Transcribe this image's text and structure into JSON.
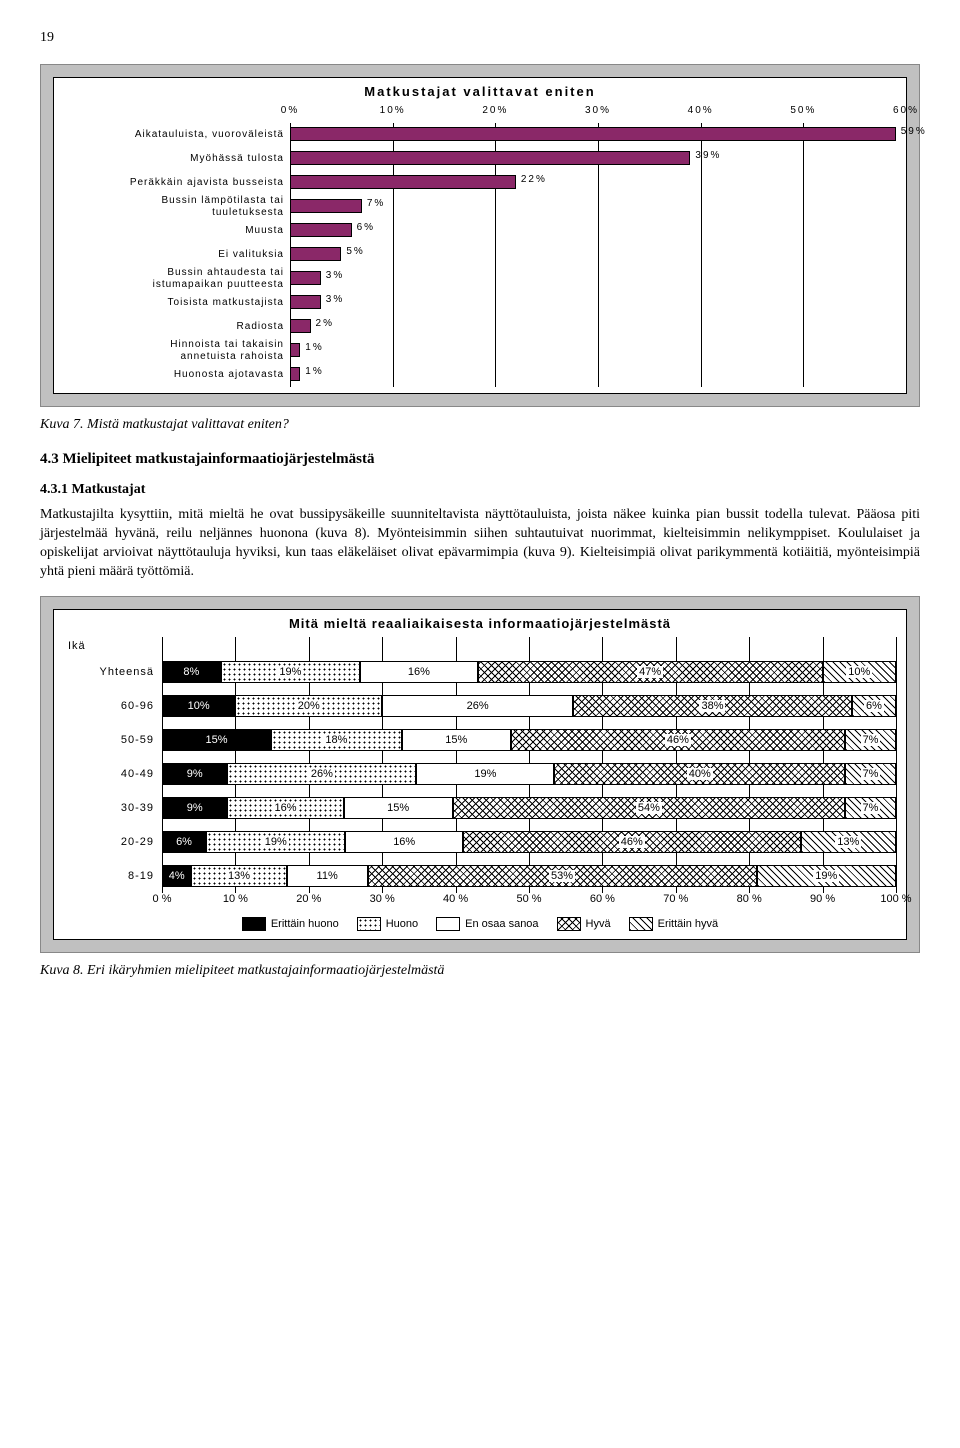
{
  "page_number": "19",
  "chart1": {
    "title": "Matkustajat valittavat eniten",
    "xmax": 60,
    "xtick_step": 10,
    "xtick_suffix": "%",
    "bar_color": "#8a2868",
    "background_color": "#c0c0c0",
    "plot_bg": "#ffffff",
    "title_fontsize": 13,
    "label_fontsize": 10,
    "items": [
      {
        "label": "Aikatauluista, vuoroväleistä",
        "value": 59
      },
      {
        "label": "Myöhässä tulosta",
        "value": 39
      },
      {
        "label": "Peräkkäin ajavista busseista",
        "value": 22
      },
      {
        "label": "Bussin lämpötilasta tai\ntuuletuksesta",
        "value": 7
      },
      {
        "label": "Muusta",
        "value": 6
      },
      {
        "label": "Ei valituksia",
        "value": 5
      },
      {
        "label": "Bussin ahtaudesta tai\nistumapaikan puutteesta",
        "value": 3
      },
      {
        "label": "Toisista matkustajista",
        "value": 3
      },
      {
        "label": "Radiosta",
        "value": 2
      },
      {
        "label": "Hinnoista tai takaisin\nannetuista rahoista",
        "value": 1
      },
      {
        "label": "Huonosta ajotavasta",
        "value": 1
      }
    ]
  },
  "caption1": "Kuva 7. Mistä matkustajat valittavat eniten?",
  "section_4_3": "4.3 Mielipiteet matkustajainformaatiojärjestelmästä",
  "section_4_3_1": "4.3.1 Matkustajat",
  "paragraph": "Matkustajilta kysyttiin, mitä mieltä he ovat bussipysäkeille suunniteltavista näyttötauluista, joista näkee kuinka pian bussit todella tulevat. Pääosa piti järjestelmää hyvänä, reilu neljännes huonona (kuva 8). Myönteisimmin siihen suhtautuivat nuorimmat, kielteisimmin nelikymppiset. Koululaiset ja opiskelijat arvioivat näyttötauluja hyviksi, kun taas eläkeläiset olivat epävarmimpia (kuva 9). Kielteisimpiä olivat parikymmentä kotiäitiä, myönteisimpiä yhtä pieni määrä työttömiä.",
  "chart2": {
    "title": "Mitä mieltä reaaliaikaisesta informaatiojärjestelmästä",
    "ytitle": "Ikä",
    "xmax": 100,
    "xtick_step": 10,
    "xtick_suffix": " %",
    "background_color": "#c0c0c0",
    "plot_bg": "#ffffff",
    "title_fontsize": 13,
    "label_fontsize": 11,
    "legend": [
      {
        "label": "Erittäin huono",
        "fill": "fill-black"
      },
      {
        "label": "Huono",
        "fill": "fill-dots"
      },
      {
        "label": "En osaa sanoa",
        "fill": "fill-white"
      },
      {
        "label": "Hyvä",
        "fill": "fill-cross"
      },
      {
        "label": "Erittäin hyvä",
        "fill": "fill-diag"
      }
    ],
    "rows": [
      {
        "label": "Yhteensä",
        "segs": [
          8,
          19,
          16,
          47,
          10
        ]
      },
      {
        "label": "60-96",
        "segs": [
          10,
          20,
          26,
          38,
          6
        ]
      },
      {
        "label": "50-59",
        "segs": [
          15,
          18,
          15,
          46,
          7
        ]
      },
      {
        "label": "40-49",
        "segs": [
          9,
          26,
          19,
          40,
          7
        ]
      },
      {
        "label": "30-39",
        "segs": [
          9,
          16,
          15,
          54,
          7
        ]
      },
      {
        "label": "20-29",
        "segs": [
          6,
          19,
          16,
          46,
          13
        ]
      },
      {
        "label": "8-19",
        "segs": [
          4,
          13,
          11,
          53,
          19
        ]
      }
    ]
  },
  "caption2": "Kuva 8. Eri ikäryhmien mielipiteet matkustajainformaatiojärjestelmästä"
}
